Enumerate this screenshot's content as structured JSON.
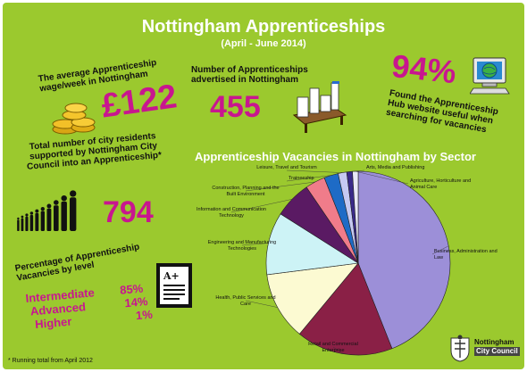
{
  "header": {
    "title": "Nottingham Apprenticeships",
    "subtitle": "(April - June 2014)"
  },
  "stats": {
    "wage_label_1": "The average Apprenticeship",
    "wage_label_2": "wage/week in Nottingham",
    "wage_value": "£122",
    "advertised_label_1": "Number of Apprenticeships",
    "advertised_label_2": "advertised in Nottingham",
    "advertised_value": "455",
    "hub_value": "94%",
    "hub_label_1": "Found the Apprenticeship",
    "hub_label_2": "Hub website useful when",
    "hub_label_3": "searching for vacancies",
    "residents_label_1": "Total number of city residents",
    "residents_label_2": "supported by Nottingham City",
    "residents_label_3": "Council into an Apprenticeship*",
    "residents_value": "794",
    "level_label_1": "Percentage of Apprenticeship",
    "level_label_2": "Vacancies by level"
  },
  "levels": [
    {
      "name": "Intermediate",
      "value": "85%"
    },
    {
      "name": "Advanced",
      "value": "14%"
    },
    {
      "name": "Higher",
      "value": "1%"
    }
  ],
  "footnote": "* Running total from April 2012",
  "logo": {
    "line1": "Nottingham",
    "line2": "City Council"
  },
  "icons": [
    "coins-icon",
    "paperwork-desk-icon",
    "computer-globe-icon",
    "people-silhouettes-icon",
    "grade-paper-icon",
    "city-crest-icon"
  ],
  "chart_data": {
    "type": "pie",
    "title": "Apprenticeship Vacancies in Nottingham by Sector",
    "slices": [
      {
        "label": "Business, Administration and Law",
        "value": 44,
        "color": "#9c8fd8"
      },
      {
        "label": "Retail and Commercial Enterprise",
        "value": 17,
        "color": "#8a2046"
      },
      {
        "label": "Health, Public Services and Care",
        "value": 12,
        "color": "#fcfad2"
      },
      {
        "label": "Engineering and Manufacturing Technologies",
        "value": 11,
        "color": "#cdf3f6"
      },
      {
        "label": "Information and Communication Technology",
        "value": 6.5,
        "color": "#5a1a63"
      },
      {
        "label": "Construction, Planning and the Built Environment",
        "value": 3.5,
        "color": "#f07c8a"
      },
      {
        "label": "Traineeship",
        "value": 2.5,
        "color": "#1e6bc6"
      },
      {
        "label": "Leisure, Travel and Tourism",
        "value": 1.5,
        "color": "#c6c9f2"
      },
      {
        "label": "Arts, Media and Publishing",
        "value": 1,
        "color": "#3a2a8a"
      },
      {
        "label": "Agriculture, Horticulture and Animal Care",
        "value": 1,
        "color": "#e8e8f8"
      }
    ]
  }
}
